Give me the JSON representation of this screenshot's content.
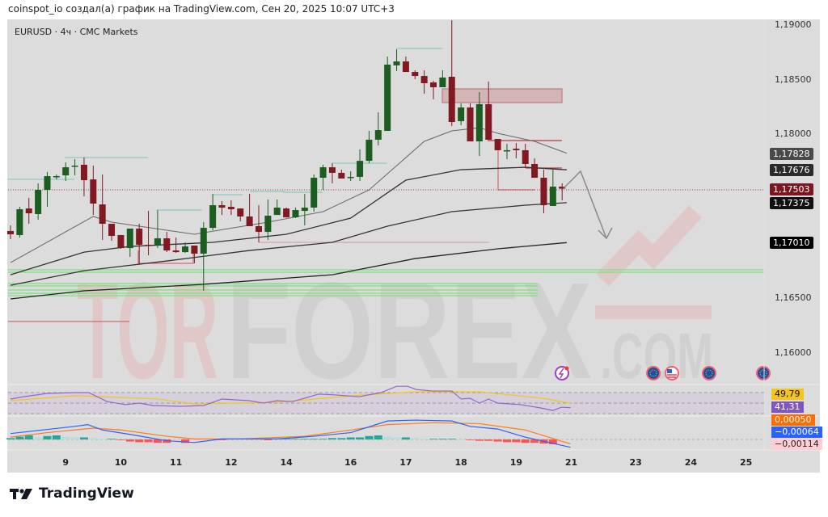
{
  "header": {
    "credit": "coinspot_io создал(а) график на TradingView.com, Сен 20, 2025 10:07 UTC+3"
  },
  "symbol": {
    "title": "EURUSD · 4ч · CMC Markets"
  },
  "price_axis": {
    "ticks": [
      "1,19000",
      "1,18500",
      "1,18000",
      "1,16500",
      "1,16000"
    ],
    "tick_values": [
      1.19,
      1.185,
      1.18,
      1.165,
      1.16
    ],
    "labels": [
      {
        "text": "1,17828",
        "value": 1.17828,
        "color": "#4a4a4a"
      },
      {
        "text": "1,17676",
        "value": 1.17676,
        "color": "#2a2a2a"
      },
      {
        "text": "1,17503",
        "value": 1.17503,
        "color": "#7c1620"
      },
      {
        "text": "1,17375",
        "value": 1.17375,
        "color": "#111111"
      },
      {
        "text": "1,17010",
        "value": 1.1701,
        "color": "#000000"
      }
    ]
  },
  "time_axis": {
    "ticks": [
      {
        "label": "9",
        "bar": 7
      },
      {
        "label": "10",
        "bar": 13
      },
      {
        "label": "11",
        "bar": 19
      },
      {
        "label": "12",
        "bar": 25
      },
      {
        "label": "14",
        "bar": 31
      },
      {
        "label": "16",
        "bar": 38
      },
      {
        "label": "17",
        "bar": 44
      },
      {
        "label": "18",
        "bar": 50
      },
      {
        "label": "19",
        "bar": 56
      },
      {
        "label": "21",
        "bar": 62
      },
      {
        "label": "23",
        "bar": 69
      },
      {
        "label": "24",
        "bar": 75
      },
      {
        "label": "25",
        "bar": 81
      }
    ]
  },
  "colors": {
    "up": "#1b5e20",
    "down": "#801922",
    "ma": "#555555",
    "rsi": "#9366cc",
    "rsi_ma": "#f5c518",
    "macd": "#2962ff",
    "signal": "#ff7b1c"
  },
  "chart_data": {
    "type": "candlestick",
    "ohlc": [
      [
        1.17116,
        1.17167,
        1.17042,
        1.17086
      ],
      [
        1.17079,
        1.17337,
        1.17056,
        1.17315
      ],
      [
        1.17322,
        1.17419,
        1.17182,
        1.17278
      ],
      [
        1.17271,
        1.17552,
        1.17219,
        1.17492
      ],
      [
        1.17492,
        1.17655,
        1.17337,
        1.17618
      ],
      [
        1.17611,
        1.17633,
        1.17588,
        1.17618
      ],
      [
        1.17625,
        1.17744,
        1.17574,
        1.17699
      ],
      [
        1.17707,
        1.17773,
        1.17625,
        1.17714
      ],
      [
        1.17722,
        1.17788,
        1.17433,
        1.17581
      ],
      [
        1.17588,
        1.17714,
        1.17263,
        1.17367
      ],
      [
        1.17359,
        1.17633,
        1.17034,
        1.17182
      ],
      [
        1.17182,
        1.17182,
        1.17027,
        1.17071
      ],
      [
        1.17079,
        1.17079,
        1.16953,
        1.1696
      ],
      [
        1.1696,
        1.17138,
        1.16879,
        1.17138
      ],
      [
        1.17138,
        1.17182,
        1.1682,
        1.1699
      ],
      [
        1.1699,
        1.173,
        1.16894,
        1.16983
      ],
      [
        1.1699,
        1.17308,
        1.1696,
        1.17049
      ],
      [
        1.17049,
        1.17108,
        1.16923,
        1.16938
      ],
      [
        1.16938,
        1.17056,
        1.16916,
        1.16923
      ],
      [
        1.16923,
        1.17012,
        1.16916,
        1.16975
      ],
      [
        1.16983,
        1.16983,
        1.1682,
        1.16909
      ],
      [
        1.16909,
        1.17197,
        1.16569,
        1.17145
      ],
      [
        1.17145,
        1.17455,
        1.17123,
        1.17352
      ],
      [
        1.17352,
        1.17389,
        1.17263,
        1.1733
      ],
      [
        1.17337,
        1.17396,
        1.17263,
        1.17315
      ],
      [
        1.17322,
        1.17322,
        1.17204,
        1.17249
      ],
      [
        1.17249,
        1.17455,
        1.1716,
        1.1716
      ],
      [
        1.1716,
        1.17352,
        1.17012,
        1.17108
      ],
      [
        1.17108,
        1.17404,
        1.17034,
        1.17256
      ],
      [
        1.17263,
        1.17404,
        1.17263,
        1.1733
      ],
      [
        1.17322,
        1.1733,
        1.17241,
        1.17241
      ],
      [
        1.17241,
        1.1733,
        1.17234,
        1.17308
      ],
      [
        1.173,
        1.17455,
        1.17167,
        1.1733
      ],
      [
        1.1733,
        1.17633,
        1.17293,
        1.17603
      ],
      [
        1.17603,
        1.17722,
        1.17492,
        1.17699
      ],
      [
        1.17699,
        1.17736,
        1.17552,
        1.17648
      ],
      [
        1.17648,
        1.17677,
        1.17596,
        1.17596
      ],
      [
        1.17611,
        1.17662,
        1.17574,
        1.17611
      ],
      [
        1.17611,
        1.17862,
        1.17574,
        1.17758
      ],
      [
        1.17758,
        1.18032,
        1.17736,
        1.17951
      ],
      [
        1.17951,
        1.18202,
        1.17899,
        1.18039
      ],
      [
        1.18032,
        1.18712,
        1.18032,
        1.18638
      ],
      [
        1.18631,
        1.18778,
        1.18579,
        1.18667
      ],
      [
        1.18667,
        1.18712,
        1.18571,
        1.18571
      ],
      [
        1.18571,
        1.18586,
        1.18505,
        1.18534
      ],
      [
        1.18534,
        1.18586,
        1.18372,
        1.18468
      ],
      [
        1.18475,
        1.1849,
        1.1832,
        1.18431
      ],
      [
        1.18431,
        1.18586,
        1.18431,
        1.1852
      ],
      [
        1.18527,
        1.19044,
        1.18076,
        1.18113
      ],
      [
        1.18121,
        1.18283,
        1.18084,
        1.18246
      ],
      [
        1.18246,
        1.18283,
        1.17936,
        1.17936
      ],
      [
        1.17936,
        1.18387,
        1.17803,
        1.18276
      ],
      [
        1.18276,
        1.18483,
        1.17951,
        1.17951
      ],
      [
        1.17958,
        1.17958,
        1.17855,
        1.17855
      ],
      [
        1.17855,
        1.17914,
        1.17773,
        1.17855
      ],
      [
        1.17869,
        1.17921,
        1.17781,
        1.17855
      ],
      [
        1.17855,
        1.17914,
        1.17692,
        1.17729
      ],
      [
        1.17729,
        1.17781,
        1.17603,
        1.17603
      ],
      [
        1.17603,
        1.17677,
        1.17278,
        1.17352
      ],
      [
        1.17345,
        1.17677,
        1.17345,
        1.17522
      ],
      [
        1.17522,
        1.17552,
        1.17396,
        1.17503
      ]
    ],
    "moving_averages": [
      {
        "points": [
          [
            1,
            1.16827
          ],
          [
            10,
            1.17249
          ],
          [
            12,
            1.17197
          ],
          [
            21,
            1.17086
          ],
          [
            29,
            1.17197
          ],
          [
            35,
            1.17293
          ],
          [
            40,
            1.17492
          ],
          [
            46,
            1.17936
          ],
          [
            49,
            1.18032
          ],
          [
            52,
            1.18061
          ],
          [
            54,
            1.1801
          ],
          [
            58,
            1.17936
          ],
          [
            61.5,
            1.17828
          ]
        ]
      },
      {
        "points": [
          [
            1,
            1.16716
          ],
          [
            9,
            1.16923
          ],
          [
            14,
            1.16975
          ],
          [
            23,
            1.17012
          ],
          [
            31,
            1.17086
          ],
          [
            38,
            1.17234
          ],
          [
            44,
            1.17581
          ],
          [
            50,
            1.17677
          ],
          [
            57,
            1.17699
          ],
          [
            61.5,
            1.17676
          ]
        ]
      },
      {
        "points": [
          [
            1,
            1.1662
          ],
          [
            9,
            1.16753
          ],
          [
            18,
            1.16842
          ],
          [
            27,
            1.16938
          ],
          [
            36,
            1.17012
          ],
          [
            42,
            1.1716
          ],
          [
            49,
            1.17293
          ],
          [
            57,
            1.17352
          ],
          [
            61.5,
            1.17375
          ]
        ]
      },
      {
        "points": [
          [
            1,
            1.16495
          ],
          [
            9,
            1.16569
          ],
          [
            22,
            1.16628
          ],
          [
            36,
            1.16716
          ],
          [
            45,
            1.16864
          ],
          [
            54,
            1.16953
          ],
          [
            61.5,
            1.1701
          ]
        ]
      }
    ],
    "price_range": [
      1.1585,
      1.1905
    ],
    "rsi": {
      "value_label": "41,31",
      "ma_label": "49,79",
      "levels": [
        70,
        50,
        30
      ],
      "range": [
        20,
        90
      ],
      "points": [
        [
          1,
          57.7
        ],
        [
          2.5,
          62.3
        ],
        [
          5,
          68.5
        ],
        [
          8,
          70
        ],
        [
          9.5,
          70
        ],
        [
          11.5,
          53
        ],
        [
          13.5,
          47
        ],
        [
          15,
          50
        ],
        [
          16.5,
          45.4
        ],
        [
          19.5,
          43.8
        ],
        [
          22,
          45.4
        ],
        [
          24,
          57.7
        ],
        [
          27,
          54.6
        ],
        [
          28.5,
          50
        ],
        [
          30,
          54.6
        ],
        [
          31.7,
          53
        ],
        [
          34.5,
          67
        ],
        [
          36,
          66
        ],
        [
          38.9,
          62
        ],
        [
          41.3,
          70
        ],
        [
          43,
          82
        ],
        [
          44.2,
          82
        ],
        [
          45.1,
          76
        ],
        [
          46.9,
          73
        ],
        [
          49,
          73
        ],
        [
          50,
          58
        ],
        [
          51,
          59
        ],
        [
          52,
          50
        ],
        [
          53,
          57.7
        ],
        [
          54,
          50
        ],
        [
          56.5,
          47
        ],
        [
          58.6,
          41
        ],
        [
          60,
          36
        ],
        [
          60.9,
          42
        ],
        [
          61.9,
          41.31
        ]
      ],
      "ma_points": [
        [
          1,
          54.6
        ],
        [
          8,
          64
        ],
        [
          17,
          58
        ],
        [
          21,
          48.5
        ],
        [
          30,
          51.5
        ],
        [
          39,
          65
        ],
        [
          45,
          71.5
        ],
        [
          52,
          71.5
        ],
        [
          59,
          59
        ],
        [
          61.9,
          49.79
        ]
      ]
    },
    "macd": {
      "labels": [
        {
          "text": "0,00050",
          "bg": "#ff6d00",
          "fg": "#ffffff"
        },
        {
          "text": "−0,00064",
          "bg": "#2962ff",
          "fg": "#ffffff"
        },
        {
          "text": "−0,00114",
          "bg": "#ffcdd2",
          "fg": "#222222"
        }
      ],
      "range": [
        -0.0013,
        0.0032
      ],
      "macd_points": [
        [
          1,
          0.00087
        ],
        [
          8,
          0.00192
        ],
        [
          9.4,
          0.00218
        ],
        [
          11,
          0.00139
        ],
        [
          14,
          0.00074
        ],
        [
          18,
          -0.00018
        ],
        [
          21,
          -0.00045
        ],
        [
          24,
          8e-05
        ],
        [
          30,
          8e-05
        ],
        [
          34,
          0.00047
        ],
        [
          38,
          0.001
        ],
        [
          42,
          0.00271
        ],
        [
          45,
          0.00284
        ],
        [
          49,
          0.00271
        ],
        [
          51,
          0.00192
        ],
        [
          54,
          0.00153
        ],
        [
          57,
          0.00034
        ],
        [
          61.9,
          -0.00114
        ]
      ],
      "signal_points": [
        [
          1,
          0.00034
        ],
        [
          5,
          0.001
        ],
        [
          10,
          0.00166
        ],
        [
          13,
          0.00139
        ],
        [
          18,
          0.00047
        ],
        [
          21,
          8e-05
        ],
        [
          26,
          8e-05
        ],
        [
          33,
          0.00047
        ],
        [
          38,
          0.00139
        ],
        [
          42,
          0.00218
        ],
        [
          47,
          0.00245
        ],
        [
          52,
          0.00232
        ],
        [
          57,
          0.00139
        ],
        [
          61.9,
          -0.00064
        ]
      ],
      "histogram": [
        0.0002,
        0.0004,
        0.0006,
        0.0003,
        0.0005,
        0.0006,
        0.0004,
        0.0003,
        0.0003,
        0.0002,
        0.0001,
        0.0001,
        -0.0001,
        -0.0003,
        -0.0004,
        -0.0004,
        -0.0005,
        -0.0005,
        -0.0002,
        -0.0005,
        -0.0003,
        -0.0002,
        -0.0001,
        -0.0001,
        0.0001,
        0.0001,
        0.0001,
        0.0001,
        -0.0001,
        0.0001,
        0.0001,
        0.0001,
        0.0001,
        0.0001,
        0.0001,
        0.0002,
        0.0002,
        0.0003,
        0.0003,
        0.0005,
        0.0006,
        0.0004,
        0.0003,
        0.0003,
        0.0002,
        0.0001,
        0.0001,
        0.0001,
        0.0001,
        0,
        -0.0001,
        -0.0002,
        -0.0002,
        -0.0003,
        -0.0004,
        -0.0004,
        -0.0005,
        -0.0005,
        -0.0006,
        -0.0007,
        -0.0005
      ]
    }
  },
  "watermark": {
    "text": "TORFOREX.COM"
  },
  "events": [
    "lightning-icon",
    "eu-flag-icon",
    "us-flag-icon",
    "eu-flag-icon",
    "eu-flag-icon"
  ],
  "footer": {
    "brand": "TradingView"
  }
}
